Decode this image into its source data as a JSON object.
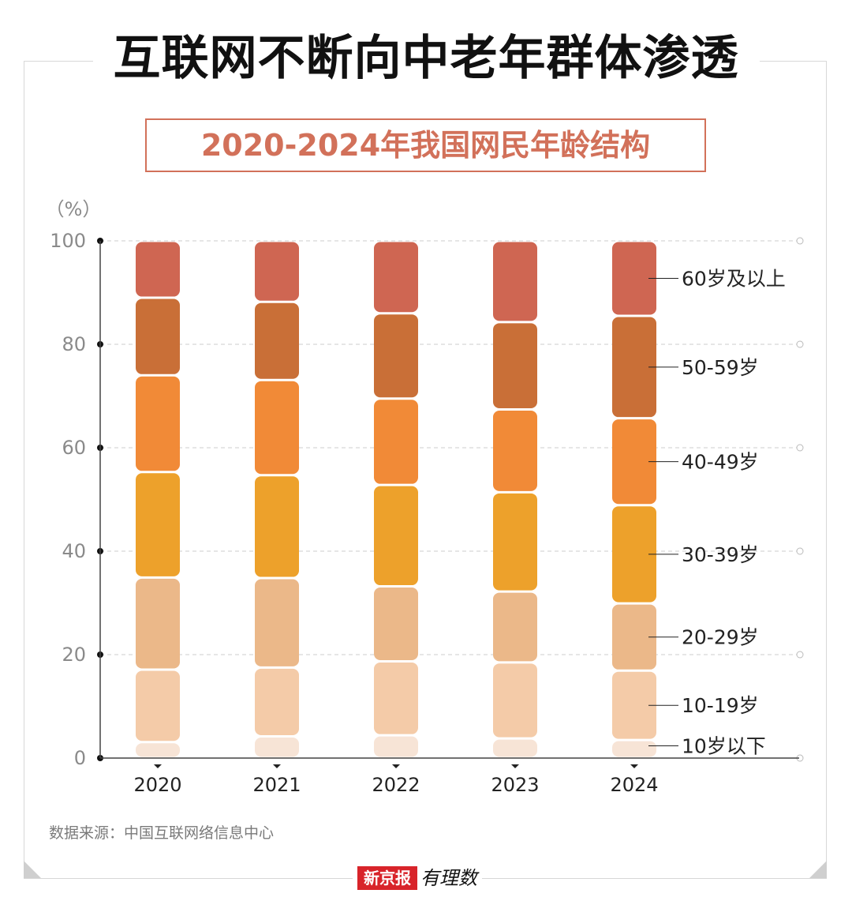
{
  "title": "互联网不断向中老年群体渗透",
  "subtitle": "2020-2024年我国网民年龄结构",
  "source": "数据来源：中国互联网络信息中心",
  "footer": {
    "brand": "新京报",
    "script": "有理数"
  },
  "colors": {
    "10岁以下": "#f7e4d6",
    "10-19岁": "#f4cba8",
    "20-29岁": "#ebb889",
    "30-39岁": "#eda12b",
    "40-49岁": "#f18a37",
    "50-59岁": "#c96f37",
    "60岁及以上": "#cf6652",
    "axis": "#7a7a7a",
    "grid": "#cccccc"
  },
  "chart_data": {
    "type": "bar",
    "stacked": true,
    "unit_label": "（%）",
    "categories": [
      "2020",
      "2021",
      "2022",
      "2023",
      "2024"
    ],
    "ylim": [
      0,
      100
    ],
    "yticks": [
      0,
      20,
      40,
      60,
      80,
      100
    ],
    "grid": true,
    "legend": "right",
    "series": [
      {
        "name": "10岁以下",
        "values": [
          3.1,
          4.2,
          4.4,
          3.8,
          3.5
        ]
      },
      {
        "name": "10-19岁",
        "values": [
          14.0,
          13.3,
          14.3,
          14.7,
          13.4
        ]
      },
      {
        "name": "20-29岁",
        "values": [
          17.8,
          17.3,
          14.5,
          13.7,
          13.0
        ]
      },
      {
        "name": "30-39岁",
        "values": [
          20.4,
          19.9,
          19.6,
          19.2,
          19.0
        ]
      },
      {
        "name": "40-49岁",
        "values": [
          18.7,
          18.4,
          16.7,
          16.0,
          16.8
        ]
      },
      {
        "name": "50-59岁",
        "values": [
          15.0,
          15.1,
          16.5,
          16.9,
          19.8
        ]
      },
      {
        "name": "60岁及以上",
        "values": [
          11.0,
          11.8,
          14.0,
          15.7,
          14.5
        ]
      }
    ]
  }
}
